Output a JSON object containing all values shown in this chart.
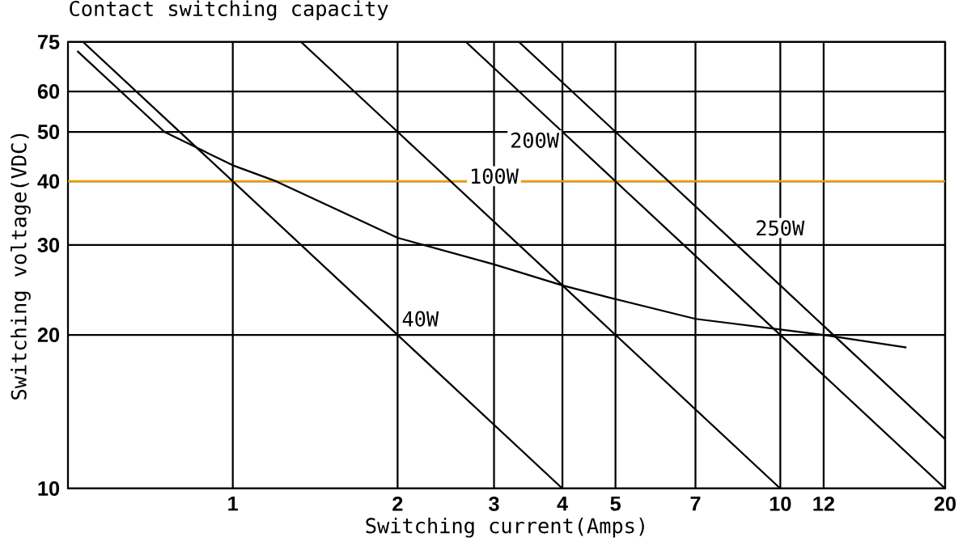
{
  "chart_data": {
    "type": "line",
    "title": "Contact switching capacity",
    "xlabel": "Switching current(Amps)",
    "ylabel": "Switching voltage(VDC)",
    "log": "xy",
    "xlim": [
      0.5,
      20
    ],
    "ylim": [
      10,
      75
    ],
    "xticks": [
      1,
      2,
      3,
      4,
      5,
      7,
      10,
      12,
      20
    ],
    "yticks": [
      10,
      20,
      30,
      40,
      50,
      60,
      75
    ],
    "grid": true,
    "marker": "none",
    "line_style": "solid",
    "series": [
      {
        "name": "40W",
        "color": "#000000",
        "x": [
          0.533,
          1,
          2,
          4
        ],
        "values": [
          75,
          40,
          20,
          10
        ]
      },
      {
        "name": "100W",
        "color": "#000000",
        "x": [
          1.333,
          2,
          4,
          10
        ],
        "values": [
          75,
          50,
          25,
          10
        ]
      },
      {
        "name": "200W",
        "color": "#000000",
        "x": [
          2.667,
          4,
          5,
          10,
          20
        ],
        "values": [
          75,
          50,
          40,
          20,
          10
        ]
      },
      {
        "name": "250W",
        "color": "#000000",
        "x": [
          3.333,
          5,
          10,
          20
        ],
        "values": [
          75,
          50,
          25,
          12.5
        ]
      },
      {
        "color": "#000000",
        "x": [
          0.52,
          0.75,
          1,
          1.2,
          2,
          3,
          4,
          5,
          7,
          10,
          12,
          17
        ],
        "values": [
          72,
          50,
          43,
          40,
          31,
          27.5,
          25,
          23.5,
          21.5,
          20.5,
          20,
          18.9
        ]
      }
    ],
    "ref_lines": [
      {
        "axis": "y",
        "value": 40,
        "color": "#e8a000"
      }
    ]
  }
}
